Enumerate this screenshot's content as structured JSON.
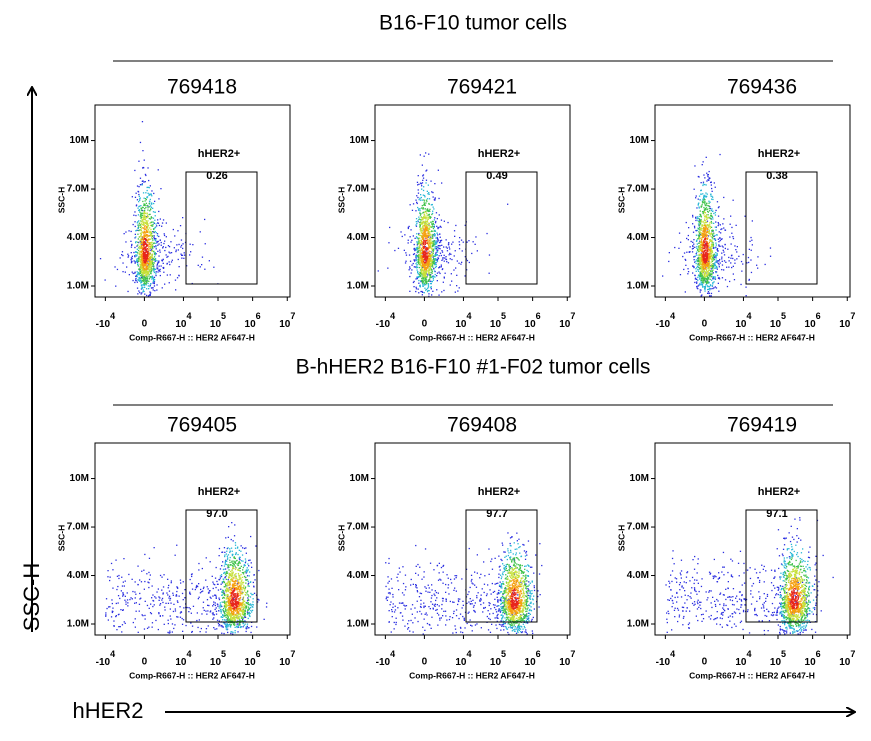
{
  "left_axis_label": "SSC-H",
  "bottom_axis_label": "hHER2",
  "x_axis": {
    "label": "Comp-R667-H :: HER2 AF647-H",
    "lim": [
      -20000,
      12000000
    ],
    "ticks": [
      {
        "value": -10000,
        "label": "-10",
        "exponent": "4"
      },
      0,
      {
        "value": 10000,
        "label": "10",
        "exponent": "4"
      },
      {
        "value": 100000,
        "label": "10",
        "exponent": "5"
      },
      {
        "value": 1000000,
        "label": "10",
        "exponent": "6"
      },
      {
        "value": 10000000,
        "label": "10",
        "exponent": "7"
      }
    ]
  },
  "y_axis": {
    "label": "SSC-H",
    "lim": [
      320000,
      12200000
    ],
    "ticks": [
      {
        "value": 1000000,
        "label": "1.0M"
      },
      {
        "value": 4000000,
        "label": "4.0M"
      },
      {
        "value": 7000000,
        "label": "7.0M"
      },
      {
        "value": 10000000,
        "label": "10M"
      }
    ]
  },
  "sections": [
    {
      "title": "B16-F10 tumor cells",
      "panels": [
        {
          "title": "769418",
          "gate_label": "hHER2+",
          "gate_value": 0.26
        },
        {
          "title": "769421",
          "gate_label": "hHER2+",
          "gate_value": 0.49
        },
        {
          "title": "769436",
          "gate_label": "hHER2+",
          "gate_value": 0.38
        }
      ]
    },
    {
      "title": "B-hHER2 B16-F10 #1-F02 tumor cells",
      "panels": [
        {
          "title": "769405",
          "gate_label": "hHER2+",
          "gate_value": 97,
          "gate_value_label": "97.0"
        },
        {
          "title": "769408",
          "gate_label": "hHER2+",
          "gate_value": 97.7
        },
        {
          "title": "769419",
          "gate_label": "hHER2+",
          "gate_value": 97.1
        }
      ]
    }
  ]
}
